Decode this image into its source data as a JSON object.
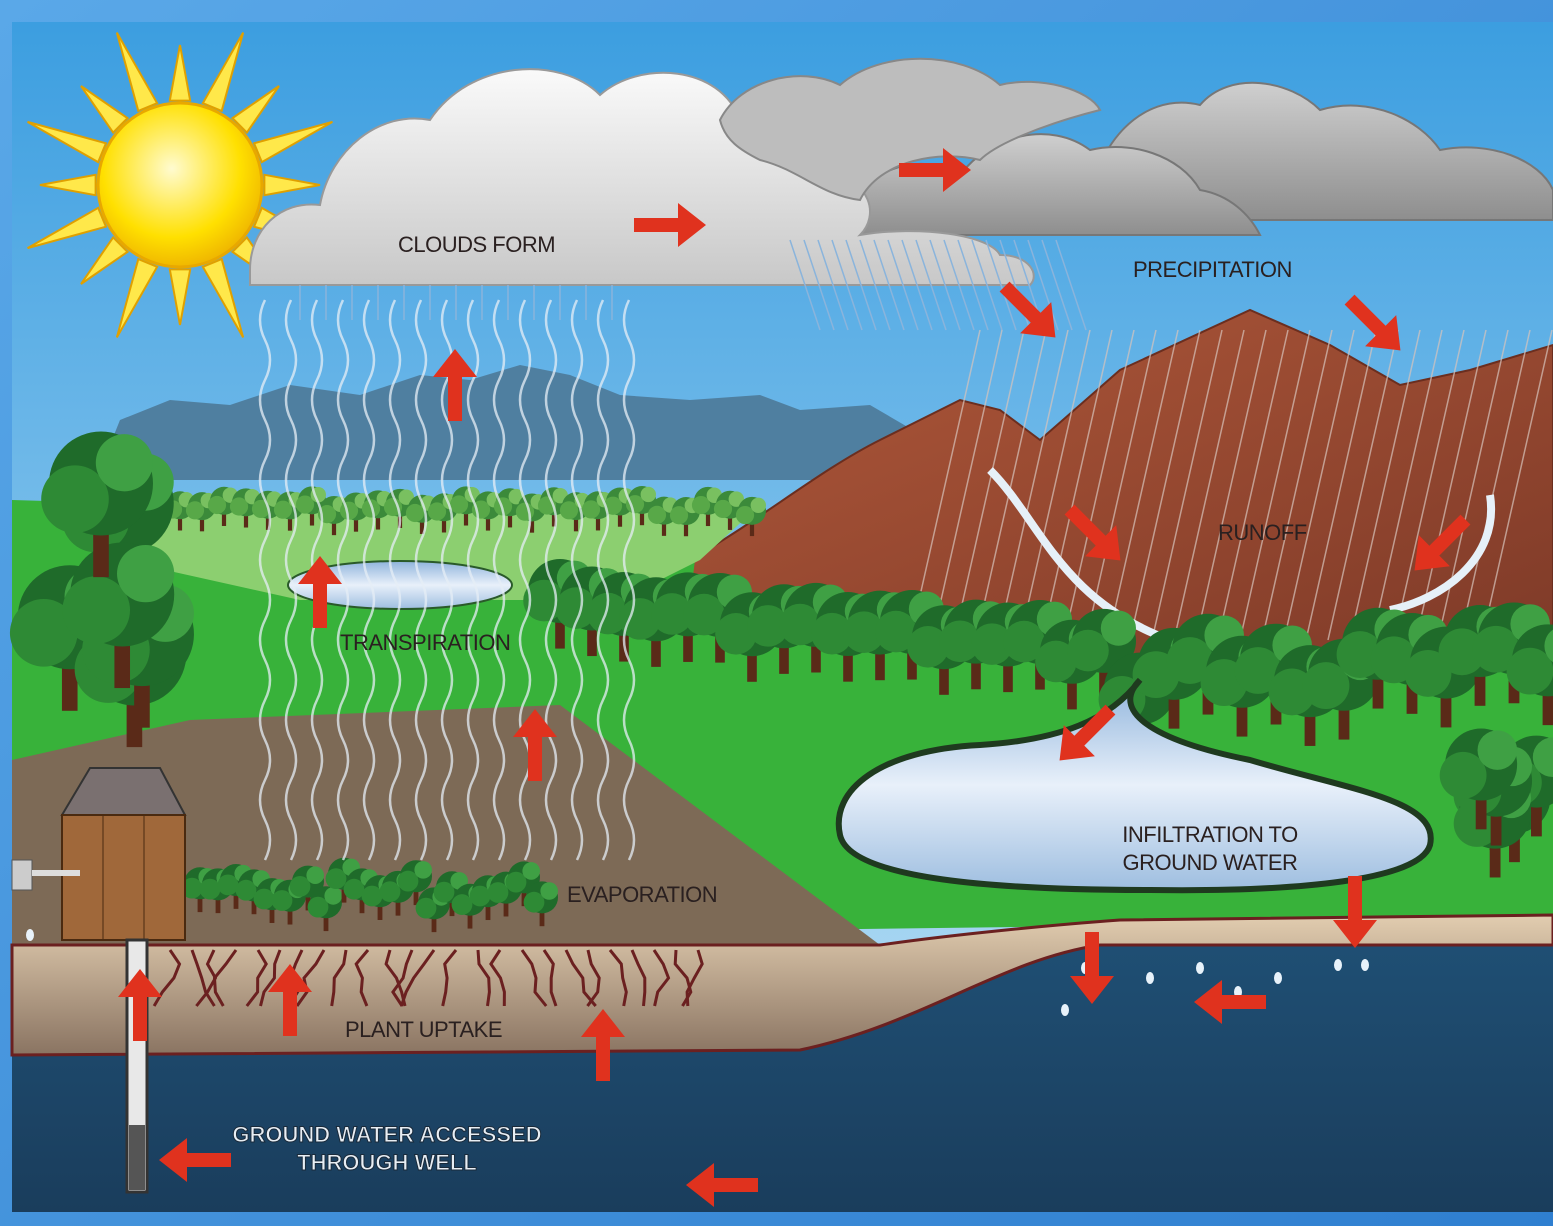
{
  "labels": {
    "clouds_form": "CLOUDS FORM",
    "precipitation": "PRECIPITATION",
    "runoff": "RUNOFF",
    "transpiration": "TRANSPIRATION",
    "evaporation": "EVAPORATION",
    "plant_uptake": "PLANT UPTAKE",
    "infiltration": [
      "INFILTRATION TO",
      "GROUND WATER"
    ],
    "well": [
      "GROUND WATER ACCESSED",
      "THROUGH WELL"
    ]
  }
}
